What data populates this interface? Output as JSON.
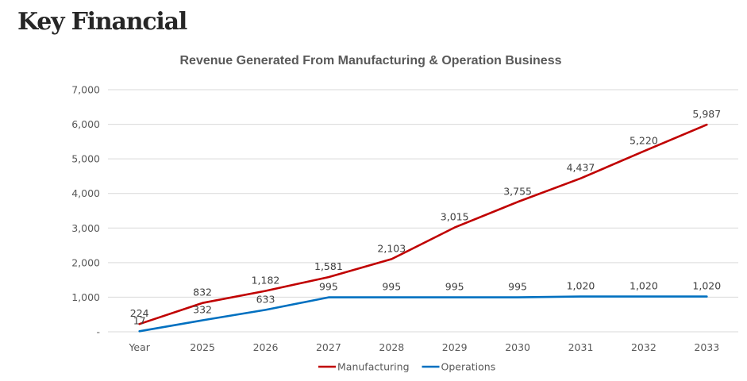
{
  "page": {
    "heading": "Key Financial"
  },
  "chart_data": {
    "type": "line",
    "title": "Revenue Generated From Manufacturing & Operation Business",
    "xlabel": "",
    "ylabel": "",
    "categories": [
      "Year",
      "2025",
      "2026",
      "2027",
      "2028",
      "2029",
      "2030",
      "2031",
      "2032",
      "2033"
    ],
    "ylim": [
      0,
      7000
    ],
    "yticks": [
      0,
      1000,
      2000,
      3000,
      4000,
      5000,
      6000,
      7000
    ],
    "ytick_labels": [
      "-",
      "1,000",
      "2,000",
      "3,000",
      "4,000",
      "5,000",
      "6,000",
      "7,000"
    ],
    "grid": true,
    "legend_position": "bottom",
    "series": [
      {
        "name": "Manufacturing",
        "color": "#c00000",
        "values": [
          224,
          832,
          1182,
          1581,
          2103,
          3015,
          3755,
          4437,
          5220,
          5987
        ],
        "labels": [
          "224",
          "832",
          "1,182",
          "1,581",
          "2,103",
          "3,015",
          "3,755",
          "4,437",
          "5,220",
          "5,987"
        ]
      },
      {
        "name": "Operations",
        "color": "#0070c0",
        "values": [
          17,
          332,
          633,
          995,
          995,
          995,
          995,
          1020,
          1020,
          1020
        ],
        "labels": [
          "17",
          "332",
          "633",
          "995",
          "995",
          "995",
          "995",
          "1,020",
          "1,020",
          "1,020"
        ]
      }
    ]
  }
}
